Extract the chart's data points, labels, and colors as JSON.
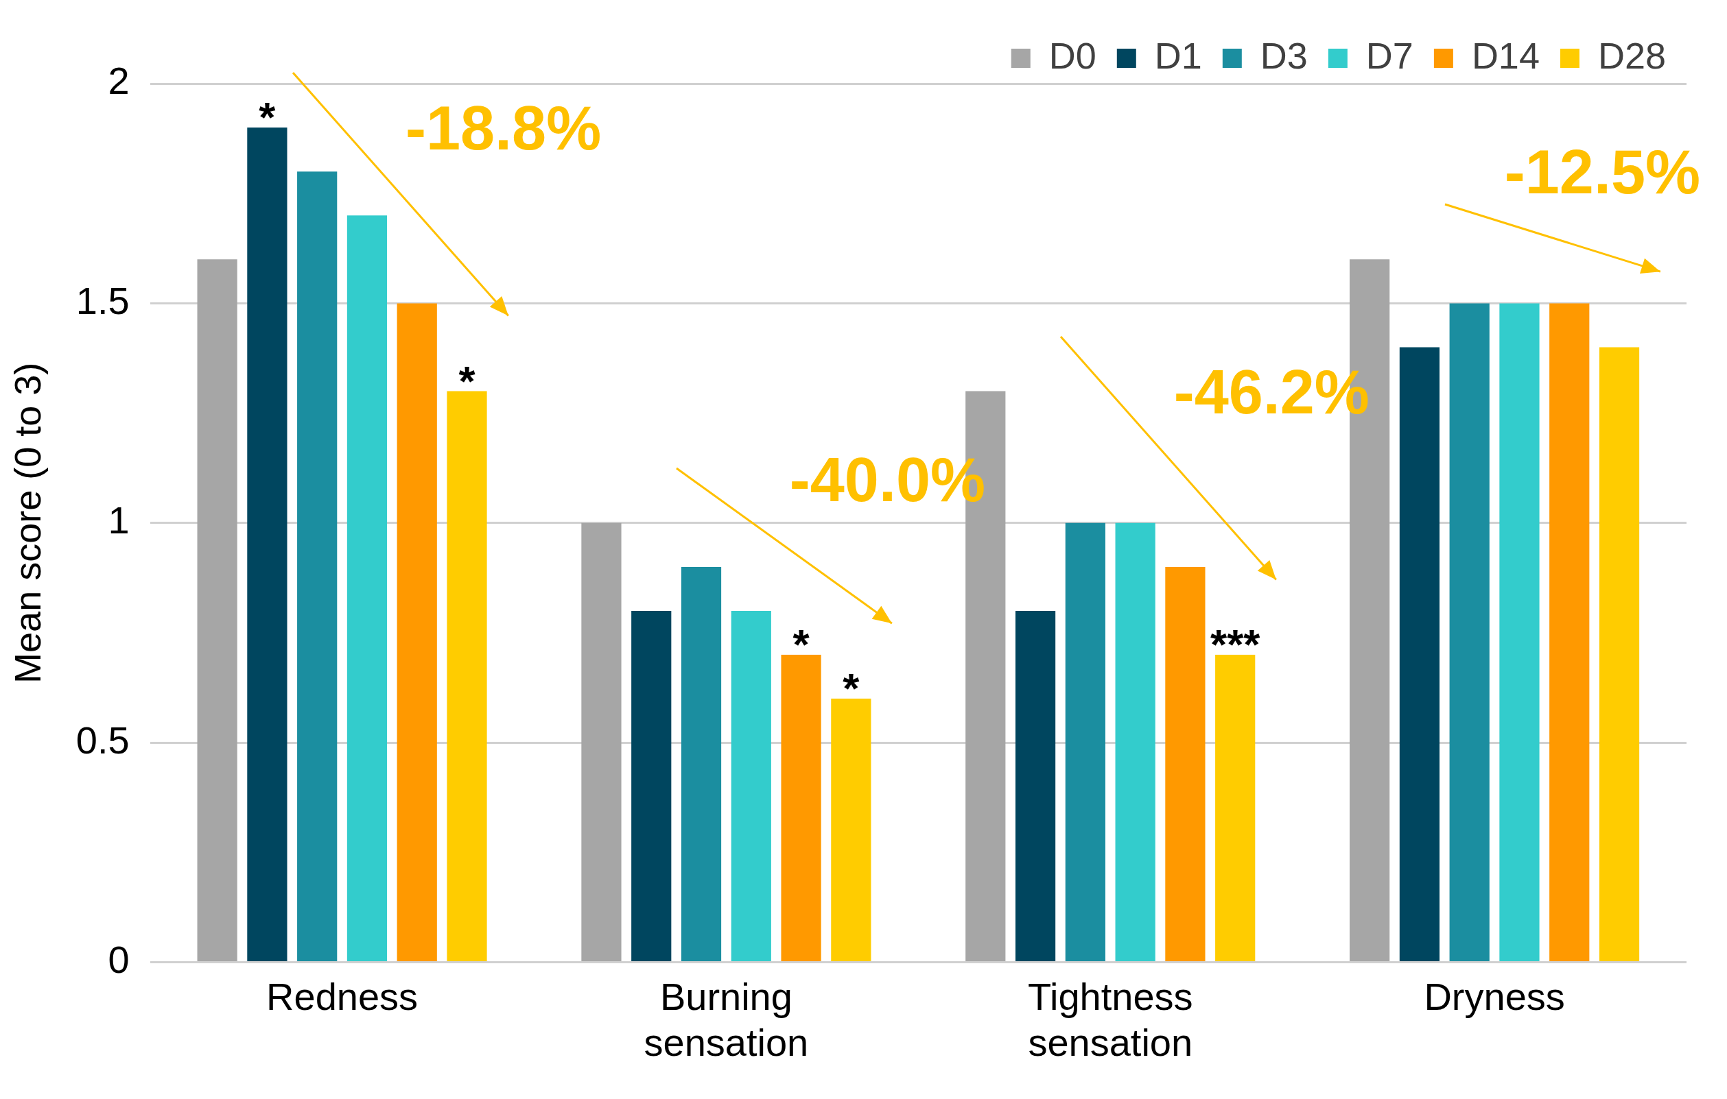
{
  "chart_data": {
    "type": "bar",
    "ylabel": "Mean score (0 to 3)",
    "categories": [
      "Redness",
      "Burning sensation",
      "Tightness sensation",
      "Dryness"
    ],
    "series": [
      {
        "name": "D0",
        "color": "#a6a6a6",
        "values": [
          1.6,
          1.0,
          1.3,
          1.6
        ]
      },
      {
        "name": "D1",
        "color": "#00465f",
        "values": [
          1.9,
          0.8,
          0.8,
          1.4
        ]
      },
      {
        "name": "D3",
        "color": "#1b8ea0",
        "values": [
          1.8,
          0.9,
          1.0,
          1.5
        ]
      },
      {
        "name": "D7",
        "color": "#33cccc",
        "values": [
          1.7,
          0.8,
          1.0,
          1.5
        ]
      },
      {
        "name": "D14",
        "color": "#ff9900",
        "values": [
          1.5,
          0.7,
          0.9,
          1.5
        ]
      },
      {
        "name": "D28",
        "color": "#ffcc00",
        "values": [
          1.3,
          0.6,
          0.7,
          1.4
        ]
      }
    ],
    "ylim": [
      0,
      2
    ],
    "yticks": [
      0,
      0.5,
      1,
      1.5,
      2
    ],
    "grid": "y",
    "legend": "top right",
    "annotations": [
      "*",
      "*",
      "*",
      "*",
      "***",
      "-18.8%",
      "-40.0%",
      "-46.2%",
      "-12.5%"
    ]
  }
}
